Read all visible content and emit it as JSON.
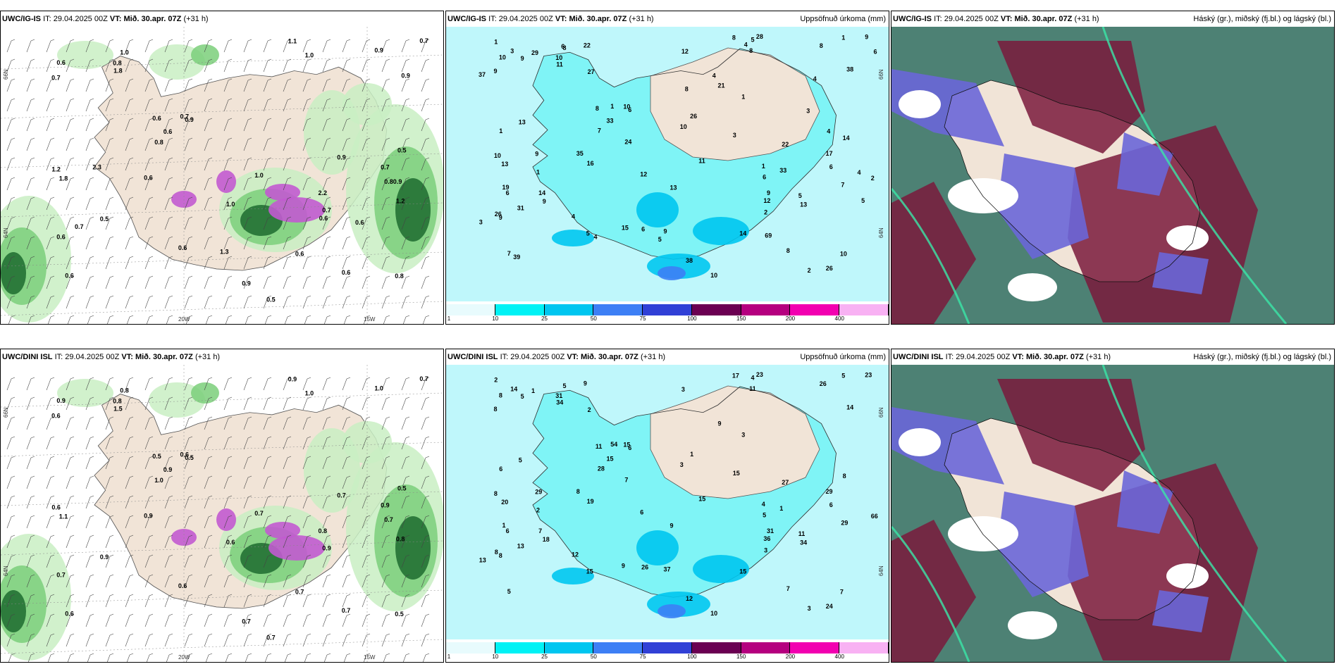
{
  "panels": [
    {
      "id": "p1",
      "model": "UWC/IG-IS",
      "it_label": "IT:",
      "it": "29.04.2025 00Z",
      "vt_label": "VT:",
      "vt": "Mið. 30.apr. 07Z",
      "lead": "(+31 h)",
      "right_title": "",
      "kind": "wind",
      "axis_labels": [
        "66N",
        "64N",
        "20W",
        "15W"
      ],
      "values": [
        "2.2",
        "0.80.9",
        "0.6",
        "1.0",
        "0.9",
        "0.6",
        "0.6",
        "1.0",
        "0.6",
        "0.5",
        "0.7",
        "1.2",
        "0.6",
        "0.8",
        "0.6",
        "0.5",
        "1.0",
        "1.0",
        "0.7",
        "0.5",
        "0.7",
        "0.9",
        "0.8",
        "1.2",
        "1.1",
        "0.8",
        "0.7",
        "1.8",
        "1.8",
        "0.9",
        "0.9",
        "0.6",
        "0.6",
        "0.6",
        "0.7",
        "0.6",
        "0.6",
        "2.3",
        "1.3",
        "0.7",
        "0.9"
      ]
    },
    {
      "id": "p2",
      "model": "UWC/IG-IS",
      "it_label": "IT:",
      "it": "29.04.2025 00Z",
      "vt_label": "VT:",
      "vt": "Mið. 30.apr. 07Z",
      "lead": "(+31 h)",
      "right_title": "Uppsöfnuð úrkoma (mm)",
      "kind": "precip",
      "axis_labels": [
        "66N",
        "64N"
      ],
      "values": [
        "6",
        "6",
        "7",
        "8",
        "6",
        "8",
        "9",
        "8",
        "8",
        "10",
        "9",
        "10",
        "10",
        "10",
        "15",
        "14",
        "13",
        "11",
        "10",
        "9",
        "9",
        "8",
        "7",
        "7",
        "8",
        "10",
        "9",
        "13",
        "11",
        "22",
        "38",
        "14",
        "33",
        "16",
        "17",
        "13",
        "12",
        "9",
        "9",
        "31",
        "38",
        "28",
        "26",
        "6",
        "5",
        "4",
        "3",
        "3",
        "3",
        "1",
        "2",
        "1",
        "1",
        "1",
        "2",
        "2",
        "1",
        "1",
        "1",
        "29",
        "33",
        "27",
        "26",
        "19",
        "12",
        "13",
        "12",
        "14",
        "35",
        "26",
        "21",
        "22",
        "24",
        "9",
        "10",
        "5",
        "6",
        "5",
        "4",
        "4",
        "5",
        "4",
        "4",
        "3",
        "4",
        "4",
        "6",
        "5",
        "6",
        "8",
        "69",
        "39",
        "37"
      ],
      "colorbar": {
        "ticks": [
          "1",
          "10",
          "25",
          "50",
          "75",
          "100",
          "150",
          "200",
          "400"
        ],
        "colors": [
          "#e8fbfd",
          "#00f2f5",
          "#00c6f0",
          "#3d7ff5",
          "#3140d6",
          "#6b0052",
          "#b5007f",
          "#f200b0",
          "#f8b1f3"
        ]
      }
    },
    {
      "id": "p3",
      "model": "UWC/IG-IS",
      "it_label": "IT:",
      "it": "29.04.2025 00Z",
      "vt_label": "VT:",
      "vt": "Mið. 30.apr. 07Z",
      "lead": "(+31 h)",
      "right_title": "Háský (gr.), miðský (fj.bl.) og lágský (bl.)",
      "kind": "cloud"
    },
    {
      "id": "p4",
      "model": "UWC/DINI ISL",
      "it_label": "IT:",
      "it": "29.04.2025 00Z",
      "vt_label": "VT:",
      "vt": "Mið. 30.apr. 07Z",
      "lead": "(+31 h)",
      "right_title": "",
      "kind": "wind",
      "axis_labels": [
        "66N",
        "64N",
        "20W",
        "15W"
      ],
      "values": [
        "0.8",
        "0.7",
        "0.6",
        "0.8",
        "0.5",
        "0.7",
        "0.7",
        "1.0",
        "0.5",
        "0.7",
        "0.6",
        "0.6",
        "0.9",
        "0.5",
        "0.6",
        "0.5",
        "0.6",
        "0.7",
        "0.6",
        "0.9",
        "0.7",
        "1.0",
        "1.0",
        "0.8",
        "0.9",
        "0.8",
        "0.9",
        "1.1",
        "1.5",
        "0.7",
        "0.7",
        "0.7",
        "0.9",
        "0.9",
        "0.9"
      ]
    },
    {
      "id": "p5",
      "model": "UWC/DINI ISL",
      "it_label": "IT:",
      "it": "29.04.2025 00Z",
      "vt_label": "VT:",
      "vt": "Mið. 30.apr. 07Z",
      "lead": "(+31 h)",
      "right_title": "Uppsöfnuð úrkoma (mm)",
      "kind": "precip",
      "axis_labels": [
        "66N",
        "64N"
      ],
      "values": [
        "5",
        "6",
        "5",
        "5",
        "6",
        "7",
        "8",
        "11",
        "11",
        "10",
        "8",
        "8",
        "8",
        "7",
        "9",
        "8",
        "9",
        "15",
        "15",
        "18",
        "23",
        "26",
        "28",
        "29",
        "17",
        "31",
        "31",
        "20",
        "34",
        "27",
        "12",
        "15",
        "15",
        "19",
        "29",
        "34",
        "36",
        "29",
        "37",
        "13",
        "14",
        "23",
        "24",
        "26",
        "11",
        "12",
        "13",
        "14",
        "15",
        "6",
        "66",
        "54",
        "5",
        "4",
        "3",
        "3",
        "3",
        "2",
        "2",
        "1",
        "1",
        "2",
        "1",
        "1",
        "3",
        "5",
        "6",
        "7",
        "8",
        "8",
        "9",
        "9",
        "7",
        "5",
        "3",
        "4",
        "6",
        "15"
      ],
      "colorbar": {
        "ticks": [
          "1",
          "10",
          "25",
          "50",
          "75",
          "100",
          "150",
          "200",
          "400"
        ],
        "colors": [
          "#e8fbfd",
          "#00f2f5",
          "#00c6f0",
          "#3d7ff5",
          "#3140d6",
          "#6b0052",
          "#b5007f",
          "#f200b0",
          "#f8b1f3"
        ]
      }
    },
    {
      "id": "p6",
      "model": "UWC/DINI ISL",
      "it_label": "IT:",
      "it": "29.04.2025 00Z",
      "vt_label": "VT:",
      "vt": "Mið. 30.apr. 07Z",
      "lead": "(+31 h)",
      "right_title": "Háský (gr.), miðský (fj.bl.) og lágský (bl.)",
      "kind": "cloud"
    }
  ],
  "colors": {
    "land": "#f1e4d7",
    "sea": "#ffffff",
    "green_light": "#c9efc3",
    "green_mid": "#7bcf7a",
    "green_dark": "#1d6b2f",
    "purple": "#c25ad0",
    "cloud_high": "#2e6b5c",
    "cloud_mid": "#6a66d8",
    "cloud_low": "#7a1a3c"
  }
}
